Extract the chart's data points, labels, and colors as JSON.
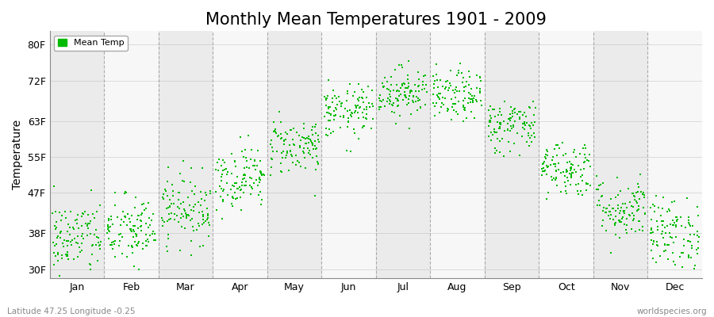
{
  "title": "Monthly Mean Temperatures 1901 - 2009",
  "ylabel": "Temperature",
  "subtitle_left": "Latitude 47.25 Longitude -0.25",
  "subtitle_right": "worldspecies.org",
  "ytick_labels": [
    "30F",
    "38F",
    "47F",
    "55F",
    "63F",
    "72F",
    "80F"
  ],
  "ytick_values": [
    30,
    38,
    47,
    55,
    63,
    72,
    80
  ],
  "month_labels": [
    "Jan",
    "Feb",
    "Mar",
    "Apr",
    "May",
    "Jun",
    "Jul",
    "Aug",
    "Sep",
    "Oct",
    "Nov",
    "Dec"
  ],
  "dot_color": "#00bb00",
  "dot_size": 3.5,
  "legend_label": "Mean Temp",
  "title_fontsize": 15,
  "years": 109,
  "monthly_mean_f": [
    37.0,
    38.5,
    43.5,
    50.5,
    57.5,
    65.0,
    69.5,
    68.5,
    62.0,
    52.5,
    43.5,
    38.0
  ],
  "monthly_std_f": [
    4.2,
    4.0,
    3.8,
    3.5,
    3.2,
    3.0,
    2.8,
    2.8,
    3.0,
    3.2,
    3.5,
    4.0
  ],
  "ylim": [
    28,
    83
  ],
  "bg_even": "#ebebeb",
  "bg_odd": "#f7f7f7",
  "grid_color": "#999999",
  "tick_fontsize": 9,
  "ylabel_fontsize": 10
}
